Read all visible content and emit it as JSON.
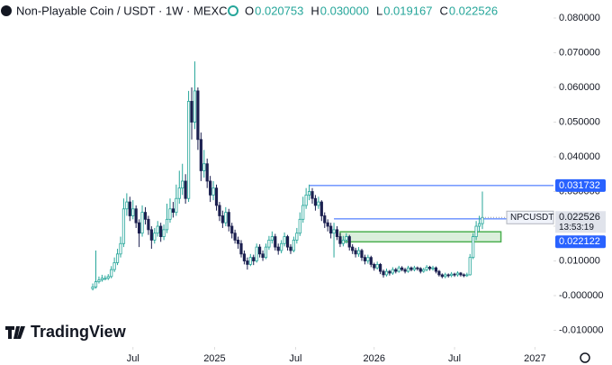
{
  "chart_data": {
    "type": "candlestick",
    "title": "Non-Playable Coin / USDT · 1W · MEXC",
    "header_values": [
      {
        "key": "O",
        "label": "0.020753"
      },
      {
        "key": "H",
        "label": "0.030000"
      },
      {
        "key": "L",
        "label": "0.019167"
      },
      {
        "key": "C",
        "label": "0.022526"
      }
    ],
    "symbol": "NPCUSDT",
    "countdown": "13:53:19",
    "brand": "TradingView",
    "up_color": "#26a69a",
    "down_color": "#1c2050",
    "ylim": [
      -0.0148,
      0.0852
    ],
    "yticks": [
      {
        "value": 0.08,
        "label": "0.080000"
      },
      {
        "value": 0.07,
        "label": "0.070000"
      },
      {
        "value": 0.06,
        "label": "0.060000"
      },
      {
        "value": 0.05,
        "label": "0.050000"
      },
      {
        "value": 0.04,
        "label": "0.040000"
      },
      {
        "value": 0.03,
        "label": "0.030000"
      },
      {
        "value": 0.02,
        "label": "0.020000"
      },
      {
        "value": 0.01,
        "label": "0.010000"
      },
      {
        "value": 0,
        "label": "-0.000000"
      },
      {
        "value": -0.01,
        "label": "-0.010000"
      }
    ],
    "xlim": [
      -30,
      149
    ],
    "xticks": [
      {
        "value": 13,
        "label": "Jul"
      },
      {
        "value": 39.4,
        "label": "2025"
      },
      {
        "value": 65.6,
        "label": "Jul"
      },
      {
        "value": 91,
        "label": "2026"
      },
      {
        "value": 117,
        "label": "Jul"
      },
      {
        "value": 143,
        "label": "2027"
      }
    ],
    "levels": [
      {
        "value": 0.031732,
        "start": 70,
        "color": "#2962ff"
      },
      {
        "value": 0.022122,
        "start": 78,
        "color": "#2962ff"
      }
    ],
    "zone": {
      "from": 80,
      "to": 132,
      "top": 0.0184,
      "bottom": 0.0155,
      "color": "#4caf50"
    },
    "ohlc": [
      [
        0.002,
        0.0035,
        0.0015,
        0.0025
      ],
      [
        0.0025,
        0.013,
        0.002,
        0.004
      ],
      [
        0.004,
        0.0055,
        0.0035,
        0.0045
      ],
      [
        0.0045,
        0.006,
        0.004,
        0.005
      ],
      [
        0.005,
        0.0058,
        0.0044,
        0.005
      ],
      [
        0.005,
        0.0062,
        0.0045,
        0.0055
      ],
      [
        0.0055,
        0.0085,
        0.005,
        0.0075
      ],
      [
        0.0075,
        0.011,
        0.0068,
        0.0095
      ],
      [
        0.0095,
        0.0135,
        0.0088,
        0.012
      ],
      [
        0.012,
        0.017,
        0.011,
        0.015
      ],
      [
        0.015,
        0.028,
        0.014,
        0.025
      ],
      [
        0.025,
        0.0295,
        0.023,
        0.027
      ],
      [
        0.027,
        0.0285,
        0.0215,
        0.023
      ],
      [
        0.023,
        0.0275,
        0.022,
        0.025
      ],
      [
        0.025,
        0.026,
        0.0195,
        0.021
      ],
      [
        0.021,
        0.022,
        0.014,
        0.018
      ],
      [
        0.018,
        0.026,
        0.017,
        0.024
      ],
      [
        0.024,
        0.0255,
        0.0205,
        0.022
      ],
      [
        0.022,
        0.023,
        0.0175,
        0.019
      ],
      [
        0.019,
        0.02,
        0.0135,
        0.016
      ],
      [
        0.016,
        0.0195,
        0.015,
        0.018
      ],
      [
        0.018,
        0.0215,
        0.017,
        0.02
      ],
      [
        0.02,
        0.021,
        0.0155,
        0.017
      ],
      [
        0.017,
        0.0205,
        0.016,
        0.019
      ],
      [
        0.019,
        0.0265,
        0.018,
        0.022
      ],
      [
        0.022,
        0.028,
        0.021,
        0.025
      ],
      [
        0.025,
        0.027,
        0.0225,
        0.024
      ],
      [
        0.024,
        0.032,
        0.023,
        0.028
      ],
      [
        0.028,
        0.036,
        0.0265,
        0.031
      ],
      [
        0.031,
        0.038,
        0.029,
        0.033
      ],
      [
        0.033,
        0.035,
        0.0265,
        0.028
      ],
      [
        0.028,
        0.059,
        0.027,
        0.056
      ],
      [
        0.056,
        0.06,
        0.045,
        0.05
      ],
      [
        0.05,
        0.0675,
        0.048,
        0.059
      ],
      [
        0.059,
        0.06,
        0.042,
        0.045
      ],
      [
        0.045,
        0.047,
        0.033,
        0.036
      ],
      [
        0.036,
        0.042,
        0.034,
        0.038
      ],
      [
        0.038,
        0.0395,
        0.031,
        0.033
      ],
      [
        0.033,
        0.0345,
        0.027,
        0.029
      ],
      [
        0.029,
        0.033,
        0.0275,
        0.031
      ],
      [
        0.031,
        0.032,
        0.0245,
        0.026
      ],
      [
        0.026,
        0.027,
        0.0215,
        0.023
      ],
      [
        0.023,
        0.0245,
        0.0195,
        0.021
      ],
      [
        0.021,
        0.0255,
        0.02,
        0.024
      ],
      [
        0.024,
        0.025,
        0.0185,
        0.02
      ],
      [
        0.02,
        0.021,
        0.0165,
        0.018
      ],
      [
        0.018,
        0.019,
        0.015,
        0.016
      ],
      [
        0.016,
        0.017,
        0.0135,
        0.015
      ],
      [
        0.015,
        0.016,
        0.011,
        0.012
      ],
      [
        0.012,
        0.013,
        0.009,
        0.01
      ],
      [
        0.01,
        0.011,
        0.0075,
        0.009
      ],
      [
        0.009,
        0.012,
        0.0085,
        0.011
      ],
      [
        0.011,
        0.0118,
        0.0088,
        0.01
      ],
      [
        0.01,
        0.015,
        0.0095,
        0.014
      ],
      [
        0.014,
        0.0148,
        0.011,
        0.012
      ],
      [
        0.012,
        0.013,
        0.01,
        0.011
      ],
      [
        0.011,
        0.015,
        0.0105,
        0.014
      ],
      [
        0.014,
        0.0172,
        0.0132,
        0.016
      ],
      [
        0.016,
        0.0185,
        0.015,
        0.017
      ],
      [
        0.017,
        0.0178,
        0.013,
        0.014
      ],
      [
        0.014,
        0.015,
        0.0118,
        0.013
      ],
      [
        0.013,
        0.016,
        0.0122,
        0.015
      ],
      [
        0.015,
        0.0182,
        0.0142,
        0.017
      ],
      [
        0.017,
        0.0175,
        0.013,
        0.014
      ],
      [
        0.014,
        0.0148,
        0.012,
        0.013
      ],
      [
        0.013,
        0.017,
        0.0125,
        0.016
      ],
      [
        0.016,
        0.0195,
        0.015,
        0.018
      ],
      [
        0.018,
        0.024,
        0.0172,
        0.022
      ],
      [
        0.022,
        0.0285,
        0.021,
        0.026
      ],
      [
        0.026,
        0.031,
        0.025,
        0.029
      ],
      [
        0.029,
        0.032,
        0.0275,
        0.03
      ],
      [
        0.03,
        0.031,
        0.0265,
        0.028
      ],
      [
        0.028,
        0.029,
        0.0245,
        0.026
      ],
      [
        0.026,
        0.0285,
        0.025,
        0.027
      ],
      [
        0.027,
        0.0275,
        0.0215,
        0.023
      ],
      [
        0.023,
        0.024,
        0.0195,
        0.021
      ],
      [
        0.021,
        0.022,
        0.0185,
        0.02
      ],
      [
        0.02,
        0.021,
        0.0165,
        0.018
      ],
      [
        0.018,
        0.021,
        0.011,
        0.019
      ],
      [
        0.019,
        0.02,
        0.016,
        0.017
      ],
      [
        0.017,
        0.018,
        0.014,
        0.015
      ],
      [
        0.015,
        0.0172,
        0.0142,
        0.016
      ],
      [
        0.016,
        0.018,
        0.015,
        0.017
      ],
      [
        0.017,
        0.0175,
        0.013,
        0.014
      ],
      [
        0.014,
        0.0148,
        0.012,
        0.013
      ],
      [
        0.013,
        0.0138,
        0.011,
        0.012
      ],
      [
        0.012,
        0.014,
        0.0112,
        0.013
      ],
      [
        0.013,
        0.0135,
        0.01,
        0.011
      ],
      [
        0.011,
        0.0118,
        0.009,
        0.01
      ],
      [
        0.01,
        0.0118,
        0.0092,
        0.011
      ],
      [
        0.011,
        0.0115,
        0.0082,
        0.009
      ],
      [
        0.009,
        0.0095,
        0.0072,
        0.008
      ],
      [
        0.008,
        0.0098,
        0.0075,
        0.009
      ],
      [
        0.009,
        0.0094,
        0.0062,
        0.007
      ],
      [
        0.007,
        0.0075,
        0.0052,
        0.006
      ],
      [
        0.006,
        0.0078,
        0.0055,
        0.007
      ],
      [
        0.007,
        0.0074,
        0.0058,
        0.0065
      ],
      [
        0.0065,
        0.0082,
        0.006,
        0.0075
      ],
      [
        0.0075,
        0.008,
        0.0064,
        0.007
      ],
      [
        0.007,
        0.0086,
        0.0066,
        0.008
      ],
      [
        0.008,
        0.0085,
        0.007,
        0.0075
      ],
      [
        0.0075,
        0.008,
        0.0064,
        0.007
      ],
      [
        0.007,
        0.0086,
        0.0066,
        0.008
      ],
      [
        0.008,
        0.0084,
        0.007,
        0.0075
      ],
      [
        0.0075,
        0.0086,
        0.007,
        0.008
      ],
      [
        0.008,
        0.0084,
        0.0072,
        0.0078
      ],
      [
        0.0078,
        0.0082,
        0.0064,
        0.007
      ],
      [
        0.007,
        0.008,
        0.0066,
        0.0075
      ],
      [
        0.0075,
        0.0088,
        0.007,
        0.0082
      ],
      [
        0.0082,
        0.0086,
        0.0072,
        0.0078
      ],
      [
        0.0078,
        0.0086,
        0.0072,
        0.008
      ],
      [
        0.008,
        0.0084,
        0.0064,
        0.007
      ],
      [
        0.007,
        0.0074,
        0.0055,
        0.006
      ],
      [
        0.006,
        0.0064,
        0.005,
        0.0055
      ],
      [
        0.0055,
        0.0066,
        0.005,
        0.006
      ],
      [
        0.006,
        0.0064,
        0.0052,
        0.0058
      ],
      [
        0.0058,
        0.0068,
        0.0053,
        0.0062
      ],
      [
        0.0062,
        0.0066,
        0.0054,
        0.006
      ],
      [
        0.006,
        0.007,
        0.0055,
        0.0065
      ],
      [
        0.0065,
        0.0068,
        0.0055,
        0.006
      ],
      [
        0.006,
        0.0064,
        0.0053,
        0.0058
      ],
      [
        0.0058,
        0.0066,
        0.0054,
        0.006
      ],
      [
        0.006,
        0.012,
        0.0058,
        0.011
      ],
      [
        0.011,
        0.018,
        0.0105,
        0.017
      ],
      [
        0.017,
        0.0215,
        0.016,
        0.02
      ],
      [
        0.02,
        0.023,
        0.0185,
        0.020753
      ],
      [
        0.020753,
        0.03,
        0.019167,
        0.022526
      ]
    ]
  }
}
